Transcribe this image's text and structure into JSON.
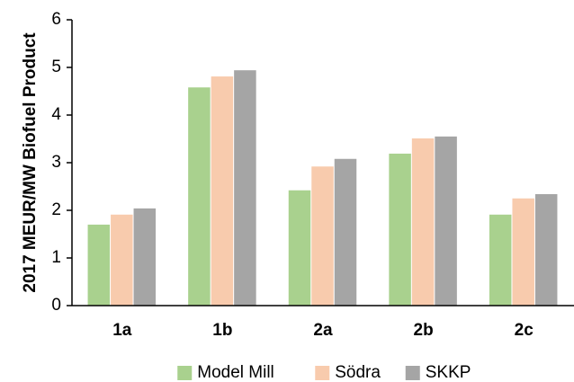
{
  "chart_data": {
    "type": "bar",
    "y_label": "2017 MEUR/MW Biofuel Product",
    "categories": [
      "1a",
      "1b",
      "2a",
      "2b",
      "2c"
    ],
    "series": [
      {
        "name": "Model Mill",
        "color": "#a9d18e",
        "values": [
          1.7,
          4.58,
          2.42,
          3.19,
          1.91
        ]
      },
      {
        "name": "Södra",
        "color": "#f8cbad",
        "values": [
          1.91,
          4.81,
          2.92,
          3.51,
          2.25
        ]
      },
      {
        "name": "SKKP",
        "color": "#a5a5a5",
        "values": [
          2.04,
          4.94,
          3.08,
          3.55,
          2.34
        ]
      }
    ],
    "ylim": [
      0,
      6
    ],
    "yticks": [
      0,
      1,
      2,
      3,
      4,
      5,
      6
    ],
    "grid": false,
    "legend": "bottom"
  }
}
